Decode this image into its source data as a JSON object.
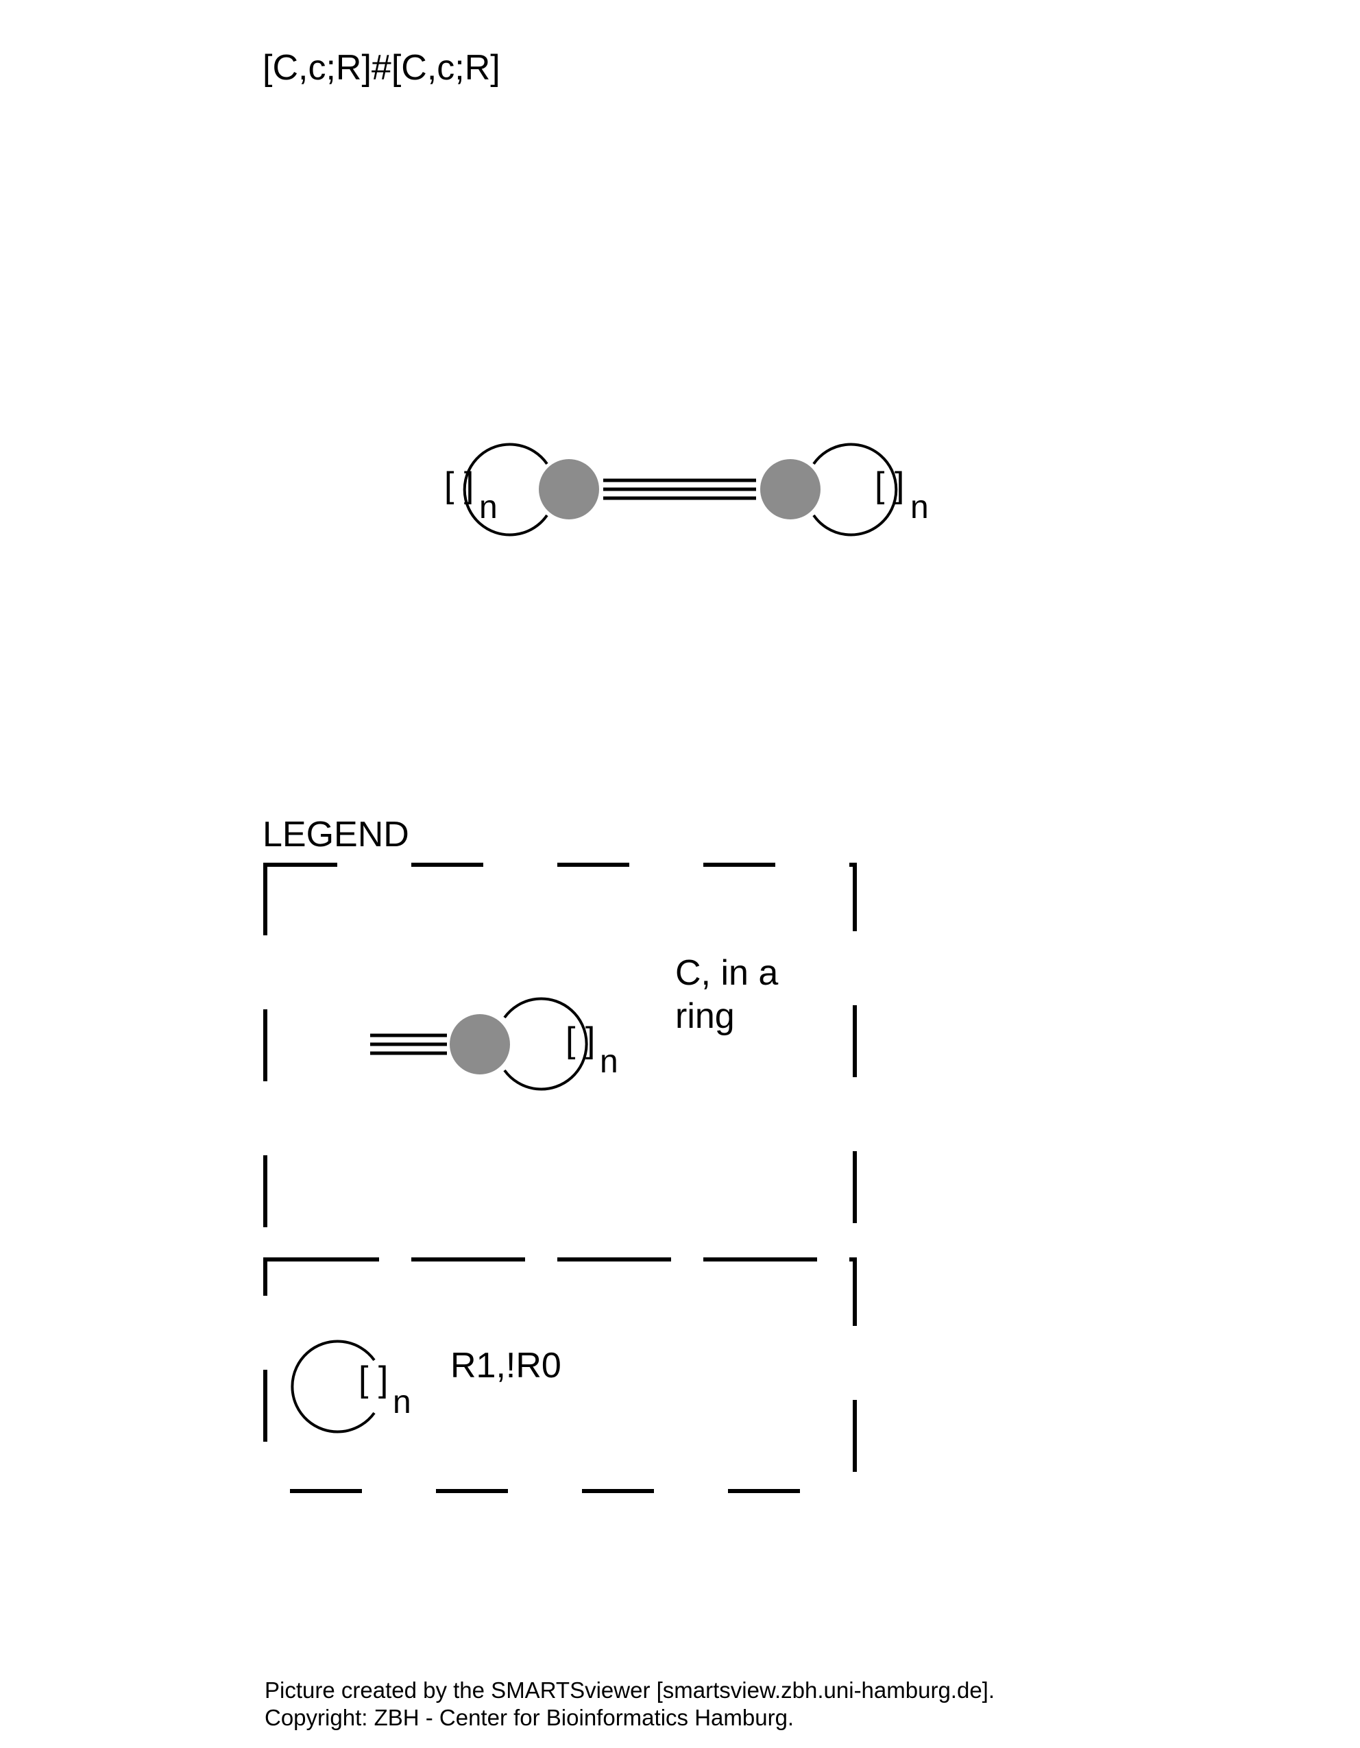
{
  "smarts": "[C,c;R]#[C,c;R]",
  "molecule": {
    "atom_color": "#8c8c8c",
    "bond_order": 3,
    "ring_bracket": "[ ]",
    "ring_subscript": "n"
  },
  "legend": {
    "title": "LEGEND",
    "entries": [
      {
        "symbol": "ring-atom-triple-bond",
        "description_lines": [
          "C, in a",
          "ring"
        ]
      },
      {
        "symbol": "ring",
        "description_lines": [
          "R1,!R0"
        ]
      }
    ]
  },
  "footer": {
    "line1": "Picture created by the SMARTSviewer [smartsview.zbh.uni-hamburg.de].",
    "line2": "Copyright: ZBH - Center for Bioinformatics Hamburg."
  }
}
